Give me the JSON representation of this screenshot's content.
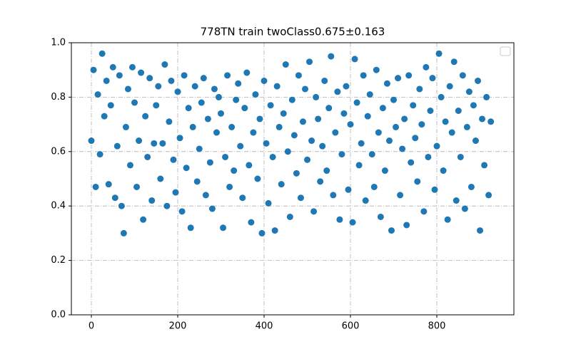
{
  "chart_data": {
    "type": "scatter",
    "title": "778TN train twoClass0.675±0.163",
    "color": "#1f77b4",
    "grid": true,
    "xlim": [
      -46.3,
      978.5
    ],
    "ylim": [
      0,
      1
    ],
    "xticks": [
      0,
      200,
      400,
      600,
      800
    ],
    "yticks": [
      {
        "value": 0,
        "label": "0.0"
      },
      {
        "value": 0.2,
        "label": "0.2"
      },
      {
        "value": 0.4,
        "label": "0.4"
      },
      {
        "value": 0.6,
        "label": "0.6"
      },
      {
        "value": 0.8,
        "label": "0.8"
      },
      {
        "value": 1,
        "label": "1.0"
      }
    ],
    "x": [
      0,
      5,
      10,
      15,
      20,
      25,
      30,
      35,
      40,
      45,
      50,
      55,
      60,
      65,
      70,
      75,
      80,
      85,
      90,
      95,
      100,
      105,
      110,
      115,
      120,
      125,
      130,
      135,
      140,
      145,
      150,
      155,
      160,
      165,
      170,
      175,
      180,
      185,
      190,
      195,
      200,
      205,
      210,
      215,
      220,
      225,
      230,
      235,
      240,
      245,
      250,
      255,
      260,
      265,
      270,
      275,
      280,
      285,
      290,
      295,
      300,
      305,
      310,
      315,
      320,
      325,
      330,
      335,
      340,
      345,
      350,
      355,
      360,
      365,
      370,
      375,
      380,
      385,
      390,
      395,
      400,
      405,
      410,
      415,
      420,
      425,
      430,
      435,
      440,
      445,
      450,
      455,
      460,
      465,
      470,
      475,
      480,
      485,
      490,
      495,
      500,
      505,
      510,
      515,
      520,
      525,
      530,
      535,
      540,
      545,
      550,
      555,
      560,
      565,
      570,
      575,
      580,
      585,
      590,
      595,
      600,
      605,
      610,
      615,
      620,
      625,
      630,
      635,
      640,
      645,
      650,
      655,
      660,
      665,
      670,
      675,
      680,
      685,
      690,
      695,
      700,
      705,
      710,
      715,
      720,
      725,
      730,
      735,
      740,
      745,
      750,
      755,
      760,
      765,
      770,
      775,
      780,
      785,
      790,
      795,
      800,
      805,
      810,
      815,
      820,
      825,
      830,
      835,
      840,
      845,
      850,
      855,
      860,
      865,
      870,
      875,
      880,
      885,
      890,
      895,
      900,
      905,
      910,
      915,
      920,
      925
    ],
    "y": [
      0.64,
      0.9,
      0.47,
      0.81,
      0.59,
      0.96,
      0.73,
      0.86,
      0.48,
      0.77,
      0.91,
      0.43,
      0.62,
      0.88,
      0.4,
      0.3,
      0.69,
      0.83,
      0.55,
      0.91,
      0.78,
      0.47,
      0.64,
      0.89,
      0.35,
      0.73,
      0.58,
      0.87,
      0.42,
      0.63,
      0.77,
      0.84,
      0.5,
      0.63,
      0.92,
      0.4,
      0.71,
      0.86,
      0.57,
      0.45,
      0.82,
      0.65,
      0.38,
      0.88,
      0.54,
      0.76,
      0.32,
      0.69,
      0.84,
      0.49,
      0.61,
      0.78,
      0.87,
      0.44,
      0.72,
      0.56,
      0.39,
      0.83,
      0.67,
      0.8,
      0.74,
      0.32,
      0.58,
      0.88,
      0.47,
      0.69,
      0.53,
      0.79,
      0.85,
      0.62,
      0.43,
      0.76,
      0.89,
      0.55,
      0.34,
      0.67,
      0.81,
      0.5,
      0.72,
      0.3,
      0.86,
      0.63,
      0.41,
      0.77,
      0.58,
      0.31,
      0.84,
      0.69,
      0.48,
      0.74,
      0.92,
      0.6,
      0.36,
      0.79,
      0.66,
      0.52,
      0.88,
      0.43,
      0.71,
      0.83,
      0.57,
      0.93,
      0.64,
      0.38,
      0.8,
      0.72,
      0.49,
      0.62,
      0.86,
      0.53,
      0.76,
      0.95,
      0.44,
      0.67,
      0.82,
      0.35,
      0.59,
      0.74,
      0.84,
      0.46,
      0.7,
      0.34,
      0.94,
      0.78,
      0.55,
      0.63,
      0.88,
      0.42,
      0.73,
      0.81,
      0.59,
      0.47,
      0.9,
      0.67,
      0.36,
      0.76,
      0.53,
      0.85,
      0.64,
      0.31,
      0.79,
      0.69,
      0.87,
      0.44,
      0.61,
      0.72,
      0.33,
      0.88,
      0.56,
      0.77,
      0.65,
      0.49,
      0.83,
      0.7,
      0.38,
      0.91,
      0.58,
      0.75,
      0.87,
      0.46,
      0.62,
      0.96,
      0.8,
      0.53,
      0.71,
      0.35,
      0.84,
      0.67,
      0.93,
      0.42,
      0.75,
      0.58,
      0.88,
      0.39,
      0.69,
      0.82,
      0.47,
      0.77,
      0.64,
      0.86,
      0.31,
      0.72,
      0.55,
      0.8,
      0.44,
      0.71
    ]
  }
}
